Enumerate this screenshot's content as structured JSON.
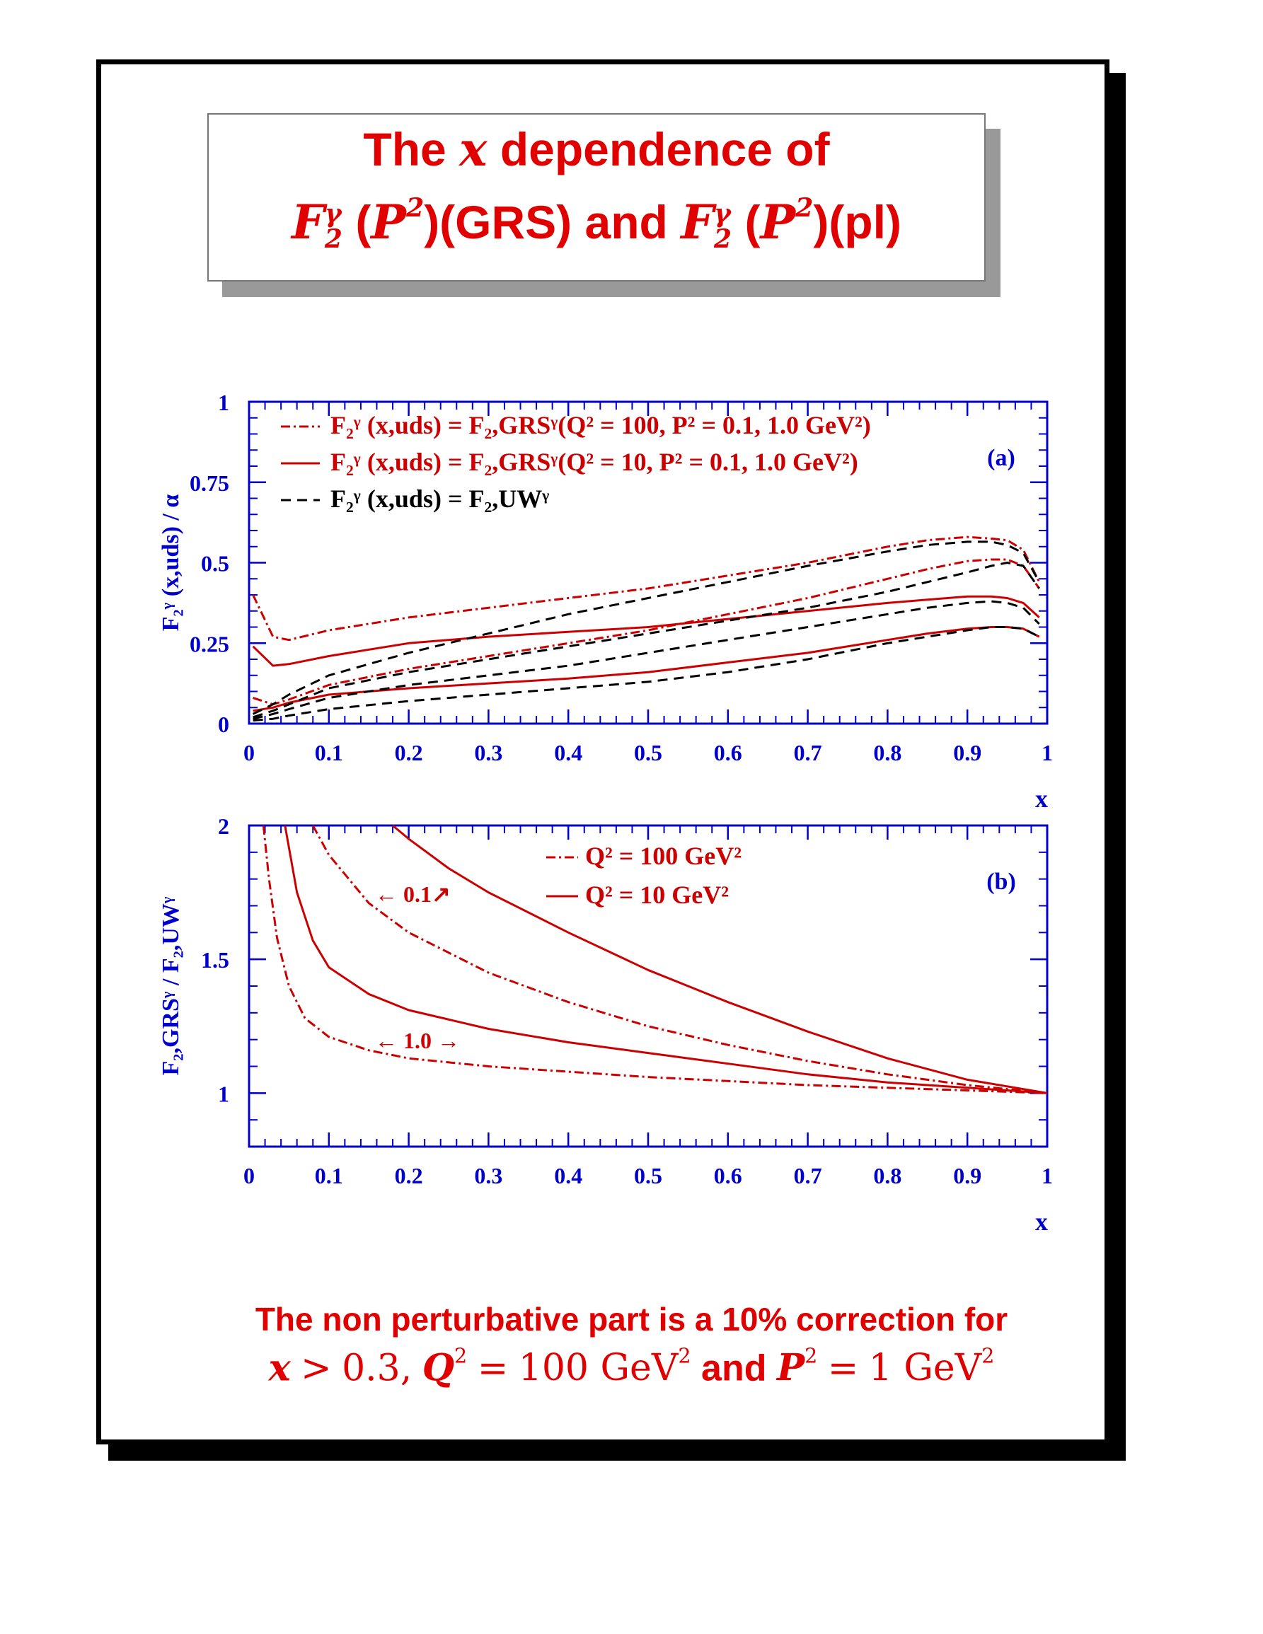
{
  "title": {
    "line1_pre": "The",
    "line1_var": "x",
    "line1_post": "dependence of",
    "F_symbol": "F",
    "F_sub": "2",
    "F_sup": "γ",
    "P_var": "P",
    "P_exp": "2",
    "grs_text": ")(GRS) and",
    "pl_text": ")(pl)",
    "open_paren": "("
  },
  "conclusion": {
    "line1": "The non perturbative part is a 10% correction for",
    "x_var": "x",
    "gt": ">",
    "x_val": "0.3,",
    "Q_var": "Q",
    "Q_exp": "2",
    "eq1": "=",
    "Q_val": "100 GeV",
    "Q_unit_exp": "2",
    "and": "and",
    "P_var": "P",
    "P_exp": "2",
    "eq2": "=",
    "P_val": "1 GeV",
    "P_unit_exp": "2"
  },
  "colors": {
    "red": "#cc0000",
    "blue": "#0000cc",
    "black": "#000000",
    "title_red": "#e00000"
  },
  "chart_data": [
    {
      "type": "line",
      "panel_label": "(a)",
      "xlabel": "x",
      "ylabel": "F₂ᵞ (x,uds) / α",
      "xlim": [
        0,
        1
      ],
      "ylim": [
        0,
        1
      ],
      "xticks": [
        "0",
        "0.1",
        "0.2",
        "0.3",
        "0.4",
        "0.5",
        "0.6",
        "0.7",
        "0.8",
        "0.9",
        "1"
      ],
      "yticks": [
        "0",
        "0.25",
        "0.5",
        "0.75",
        "1"
      ],
      "legend": [
        {
          "style": "dashdot",
          "color": "#cc0000",
          "text": "F₂ᵞ (x,uds) = F₂,GRSᵞ(Q² = 100, P² = 0.1, 1.0 GeV²)"
        },
        {
          "style": "solid",
          "color": "#cc0000",
          "text": "F₂ᵞ (x,uds) = F₂,GRSᵞ(Q² = 10, P² = 0.1, 1.0 GeV²)"
        },
        {
          "style": "dashed",
          "color": "#000000",
          "text": "F₂ᵞ (x,uds) = F₂,UWᵞ"
        }
      ],
      "x": [
        0.005,
        0.03,
        0.05,
        0.1,
        0.2,
        0.3,
        0.4,
        0.5,
        0.6,
        0.7,
        0.8,
        0.85,
        0.9,
        0.93,
        0.95,
        0.97,
        0.99
      ],
      "series": [
        {
          "style": "dashdot",
          "color": "#cc0000",
          "values": [
            0.4,
            0.27,
            0.26,
            0.29,
            0.33,
            0.36,
            0.39,
            0.42,
            0.46,
            0.5,
            0.55,
            0.57,
            0.58,
            0.575,
            0.57,
            0.54,
            0.44
          ]
        },
        {
          "style": "dashdot",
          "color": "#cc0000",
          "values": [
            0.08,
            0.06,
            0.075,
            0.12,
            0.17,
            0.21,
            0.25,
            0.29,
            0.34,
            0.39,
            0.45,
            0.48,
            0.505,
            0.51,
            0.51,
            0.49,
            0.42
          ]
        },
        {
          "style": "solid",
          "color": "#cc0000",
          "values": [
            0.24,
            0.18,
            0.185,
            0.21,
            0.25,
            0.27,
            0.285,
            0.3,
            0.325,
            0.35,
            0.375,
            0.385,
            0.395,
            0.395,
            0.39,
            0.375,
            0.33
          ]
        },
        {
          "style": "solid",
          "color": "#cc0000",
          "values": [
            0.04,
            0.05,
            0.065,
            0.09,
            0.11,
            0.125,
            0.14,
            0.16,
            0.19,
            0.22,
            0.26,
            0.28,
            0.295,
            0.3,
            0.3,
            0.295,
            0.27
          ]
        },
        {
          "style": "dashed",
          "color": "#000000",
          "values": [
            0.03,
            0.06,
            0.09,
            0.15,
            0.22,
            0.28,
            0.34,
            0.39,
            0.44,
            0.49,
            0.535,
            0.555,
            0.565,
            0.565,
            0.555,
            0.53,
            0.44
          ]
        },
        {
          "style": "dashed",
          "color": "#000000",
          "values": [
            0.02,
            0.04,
            0.06,
            0.11,
            0.16,
            0.2,
            0.24,
            0.28,
            0.32,
            0.36,
            0.41,
            0.44,
            0.47,
            0.49,
            0.5,
            0.49,
            0.42
          ]
        },
        {
          "style": "dashed",
          "color": "#000000",
          "values": [
            0.015,
            0.03,
            0.045,
            0.08,
            0.12,
            0.15,
            0.18,
            0.22,
            0.26,
            0.3,
            0.34,
            0.36,
            0.375,
            0.38,
            0.375,
            0.36,
            0.31
          ]
        },
        {
          "style": "dashed",
          "color": "#000000",
          "values": [
            0.01,
            0.015,
            0.025,
            0.045,
            0.07,
            0.09,
            0.11,
            0.13,
            0.16,
            0.2,
            0.25,
            0.27,
            0.29,
            0.3,
            0.3,
            0.295,
            0.27
          ]
        }
      ]
    },
    {
      "type": "line",
      "panel_label": "(b)",
      "xlabel": "x",
      "ylabel": "F₂,GRSᵞ / F₂,UWᵞ",
      "xlim": [
        0,
        1
      ],
      "ylim": [
        0.8,
        2
      ],
      "xticks": [
        "0",
        "0.1",
        "0.2",
        "0.3",
        "0.4",
        "0.5",
        "0.6",
        "0.7",
        "0.8",
        "0.9",
        "1"
      ],
      "yticks": [
        "1",
        "1.5",
        "2"
      ],
      "legend": [
        {
          "style": "dashdot",
          "color": "#cc0000",
          "text": "Q² = 100 GeV²"
        },
        {
          "style": "solid",
          "color": "#cc0000",
          "text": "Q² =  10 GeV²"
        }
      ],
      "annotations": [
        {
          "text": "← 0.1↗"
        },
        {
          "text": "← 1.0 →"
        }
      ],
      "series": [
        {
          "style": "solid",
          "color": "#cc0000",
          "x": [
            0.18,
            0.2,
            0.25,
            0.3,
            0.4,
            0.5,
            0.6,
            0.7,
            0.8,
            0.9,
            1.0
          ],
          "values": [
            2.0,
            1.95,
            1.84,
            1.75,
            1.6,
            1.46,
            1.34,
            1.23,
            1.13,
            1.05,
            1.0
          ]
        },
        {
          "style": "dashdot",
          "color": "#cc0000",
          "x": [
            0.08,
            0.1,
            0.15,
            0.2,
            0.3,
            0.4,
            0.5,
            0.6,
            0.7,
            0.8,
            0.9,
            1.0
          ],
          "values": [
            2.0,
            1.89,
            1.71,
            1.6,
            1.45,
            1.34,
            1.25,
            1.18,
            1.12,
            1.07,
            1.03,
            1.0
          ]
        },
        {
          "style": "solid",
          "color": "#cc0000",
          "x": [
            0.045,
            0.06,
            0.08,
            0.1,
            0.15,
            0.2,
            0.3,
            0.4,
            0.5,
            0.6,
            0.7,
            0.8,
            0.9,
            1.0
          ],
          "values": [
            2.0,
            1.75,
            1.57,
            1.47,
            1.37,
            1.31,
            1.24,
            1.19,
            1.15,
            1.11,
            1.07,
            1.04,
            1.02,
            1.0
          ]
        },
        {
          "style": "dashdot",
          "color": "#cc0000",
          "x": [
            0.018,
            0.025,
            0.035,
            0.05,
            0.07,
            0.1,
            0.15,
            0.2,
            0.3,
            0.4,
            0.5,
            0.6,
            0.7,
            0.8,
            0.9,
            1.0
          ],
          "values": [
            2.0,
            1.8,
            1.58,
            1.4,
            1.28,
            1.21,
            1.16,
            1.13,
            1.1,
            1.08,
            1.06,
            1.045,
            1.03,
            1.02,
            1.01,
            1.0
          ]
        }
      ]
    }
  ]
}
